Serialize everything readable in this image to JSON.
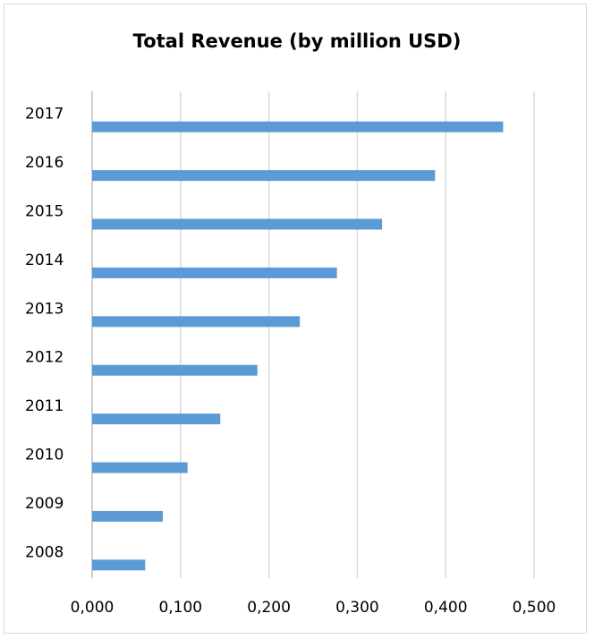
{
  "chart_data": {
    "type": "bar",
    "orientation": "horizontal",
    "title": "Total Revenue (by million USD)",
    "xlabel": "",
    "ylabel": "",
    "categories": [
      "2008",
      "2009",
      "2010",
      "2011",
      "2012",
      "2013",
      "2014",
      "2015",
      "2016",
      "2017"
    ],
    "values": [
      0.06,
      0.08,
      0.108,
      0.145,
      0.187,
      0.235,
      0.277,
      0.328,
      0.388,
      0.465
    ],
    "xlim": [
      0,
      0.5
    ],
    "xticks": [
      "0,000",
      "0,100",
      "0,200",
      "0,300",
      "0,400",
      "0,500"
    ],
    "grid": true,
    "legend": "none",
    "colors": {
      "bar": "#5b9bd5",
      "grid": "#d9d9d9",
      "frame": "#d9d9d9",
      "text": "#000000"
    }
  }
}
